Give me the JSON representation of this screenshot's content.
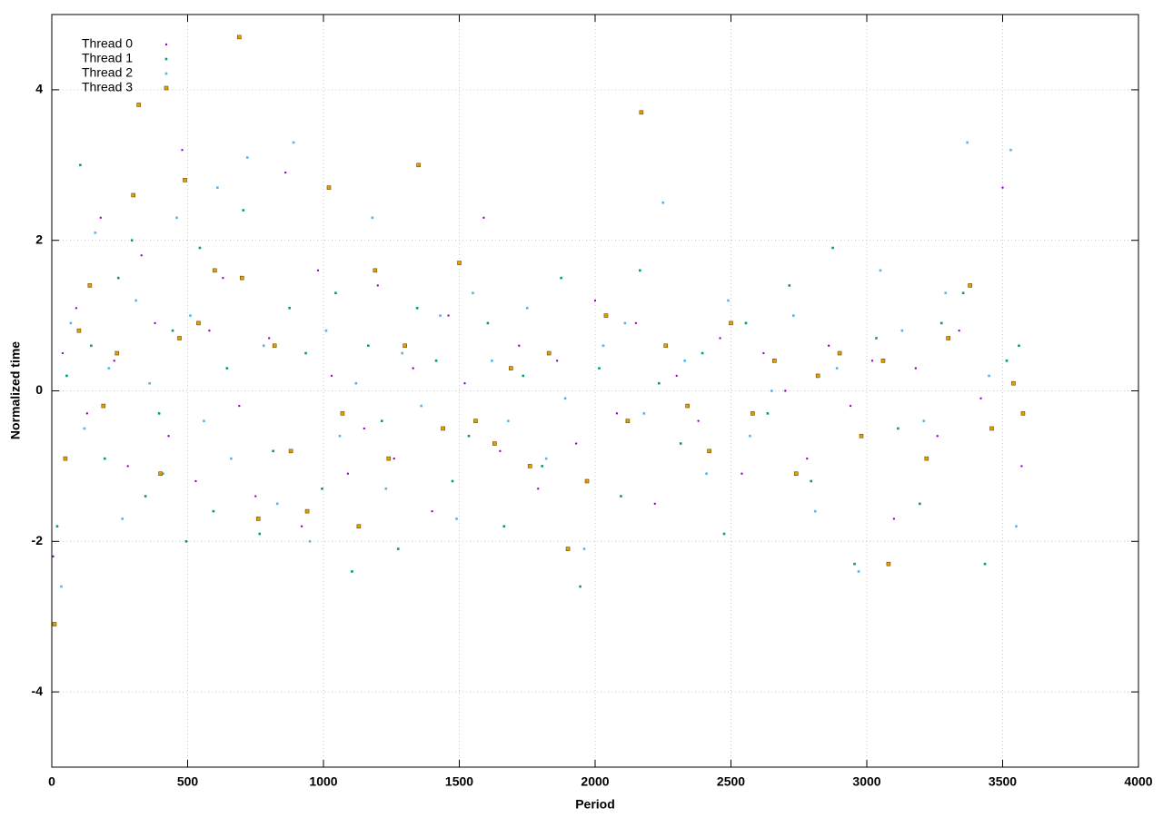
{
  "chart_data": {
    "type": "scatter",
    "xlabel": "Period",
    "ylabel": "Normalized time",
    "xlim": [
      0,
      4000
    ],
    "ylim": [
      -5,
      5
    ],
    "xticks": [
      0,
      500,
      1000,
      1500,
      2000,
      2500,
      3000,
      3500,
      4000
    ],
    "yticks": [
      -4,
      -2,
      0,
      2,
      4
    ],
    "grid": true,
    "legend": "top-left",
    "series": [
      {
        "name": "Thread 0",
        "color": "#9400d3",
        "marker": "dot",
        "x": [
          5,
          40,
          90,
          130,
          180,
          230,
          280,
          330,
          380,
          430,
          480,
          530,
          580,
          630,
          690,
          750,
          800,
          860,
          920,
          980,
          1030,
          1090,
          1150,
          1200,
          1260,
          1330,
          1400,
          1460,
          1520,
          1590,
          1650,
          1720,
          1790,
          1860,
          1930,
          2000,
          2080,
          2150,
          2220,
          2300,
          2380,
          2460,
          2540,
          2620,
          2700,
          2780,
          2860,
          2940,
          3020,
          3100,
          3180,
          3260,
          3340,
          3420,
          3500,
          3570
        ],
        "values": [
          -2.2,
          0.5,
          1.1,
          -0.3,
          2.3,
          0.4,
          -1.0,
          1.8,
          0.9,
          -0.6,
          3.2,
          -1.2,
          0.8,
          1.5,
          -0.2,
          -1.4,
          0.7,
          2.9,
          -1.8,
          1.6,
          0.2,
          -1.1,
          -0.5,
          1.4,
          -0.9,
          0.3,
          -1.6,
          1.0,
          0.1,
          2.3,
          -0.8,
          0.6,
          -1.3,
          0.4,
          -0.7,
          1.2,
          -0.3,
          0.9,
          -1.5,
          0.2,
          -0.4,
          0.7,
          -1.1,
          0.5,
          0.0,
          -0.9,
          0.6,
          -0.2,
          0.4,
          -1.7,
          0.3,
          -0.6,
          0.8,
          -0.1,
          2.7,
          -1.0
        ]
      },
      {
        "name": "Thread 1",
        "color": "#009e73",
        "marker": "square",
        "x": [
          20,
          55,
          105,
          145,
          195,
          245,
          295,
          345,
          395,
          445,
          495,
          545,
          595,
          645,
          705,
          765,
          815,
          875,
          935,
          995,
          1045,
          1105,
          1165,
          1215,
          1275,
          1345,
          1415,
          1475,
          1535,
          1605,
          1665,
          1735,
          1805,
          1875,
          1945,
          2015,
          2095,
          2165,
          2235,
          2315,
          2395,
          2475,
          2555,
          2635,
          2715,
          2795,
          2875,
          2955,
          3035,
          3115,
          3195,
          3275,
          3355,
          3435,
          3515,
          3560
        ],
        "values": [
          -1.8,
          0.2,
          3.0,
          0.6,
          -0.9,
          1.5,
          2.0,
          -1.4,
          -0.3,
          0.8,
          -2.0,
          1.9,
          -1.6,
          0.3,
          2.4,
          -1.9,
          -0.8,
          1.1,
          0.5,
          -1.3,
          1.3,
          -2.4,
          0.6,
          -0.4,
          -2.1,
          1.1,
          0.4,
          -1.2,
          -0.6,
          0.9,
          -1.8,
          0.2,
          -1.0,
          1.5,
          -2.6,
          0.3,
          -1.4,
          1.6,
          0.1,
          -0.7,
          0.5,
          -1.9,
          0.9,
          -0.3,
          1.4,
          -1.2,
          1.9,
          -2.3,
          0.7,
          -0.5,
          -1.5,
          0.9,
          1.3,
          -2.3,
          0.4,
          0.6
        ]
      },
      {
        "name": "Thread 2",
        "color": "#56b4e9",
        "marker": "square",
        "x": [
          35,
          70,
          120,
          160,
          210,
          260,
          310,
          360,
          410,
          460,
          510,
          560,
          610,
          660,
          720,
          780,
          830,
          890,
          950,
          1010,
          1060,
          1120,
          1180,
          1230,
          1290,
          1360,
          1430,
          1490,
          1550,
          1620,
          1680,
          1750,
          1820,
          1890,
          1960,
          2030,
          2110,
          2180,
          2250,
          2330,
          2410,
          2490,
          2570,
          2650,
          2730,
          2810,
          2890,
          2970,
          3050,
          3130,
          3210,
          3290,
          3370,
          3450,
          3530,
          3550
        ],
        "values": [
          -2.6,
          0.9,
          -0.5,
          2.1,
          0.3,
          -1.7,
          1.2,
          0.1,
          -1.1,
          2.3,
          1.0,
          -0.4,
          2.7,
          -0.9,
          3.1,
          0.6,
          -1.5,
          3.3,
          -2.0,
          0.8,
          -0.6,
          0.1,
          2.3,
          -1.3,
          0.5,
          -0.2,
          1.0,
          -1.7,
          1.3,
          0.4,
          -0.4,
          1.1,
          -0.9,
          -0.1,
          -2.1,
          0.6,
          0.9,
          -0.3,
          2.5,
          0.4,
          -1.1,
          1.2,
          -0.6,
          0.0,
          1.0,
          -1.6,
          0.3,
          -2.4,
          1.6,
          0.8,
          -0.4,
          1.3,
          3.3,
          0.2,
          3.2,
          -1.8
        ]
      },
      {
        "name": "Thread 3",
        "color": "#e69f00",
        "marker": "bordered-square",
        "x": [
          10,
          50,
          100,
          140,
          190,
          240,
          300,
          320,
          400,
          470,
          490,
          540,
          600,
          690,
          700,
          760,
          820,
          880,
          940,
          1020,
          1070,
          1130,
          1190,
          1240,
          1300,
          1350,
          1440,
          1500,
          1560,
          1630,
          1690,
          1760,
          1830,
          1900,
          1970,
          2040,
          2120,
          2170,
          2260,
          2340,
          2420,
          2500,
          2580,
          2660,
          2740,
          2820,
          2900,
          2980,
          3060,
          3080,
          3220,
          3300,
          3380,
          3460,
          3540,
          3575
        ],
        "values": [
          -3.1,
          -0.9,
          0.8,
          1.4,
          -0.2,
          0.5,
          2.6,
          3.8,
          -1.1,
          0.7,
          2.8,
          0.9,
          1.6,
          4.7,
          1.5,
          -1.7,
          0.6,
          -0.8,
          -1.6,
          2.7,
          -0.3,
          -1.8,
          1.6,
          -0.9,
          0.6,
          3.0,
          -0.5,
          1.7,
          -0.4,
          -0.7,
          0.3,
          -1.0,
          0.5,
          -2.1,
          -1.2,
          1.0,
          -0.4,
          3.7,
          0.6,
          -0.2,
          -0.8,
          0.9,
          -0.3,
          0.4,
          -1.1,
          0.2,
          0.5,
          -0.6,
          0.4,
          -2.3,
          -0.9,
          0.7,
          1.4,
          -0.5,
          0.1,
          -0.3
        ]
      }
    ]
  }
}
